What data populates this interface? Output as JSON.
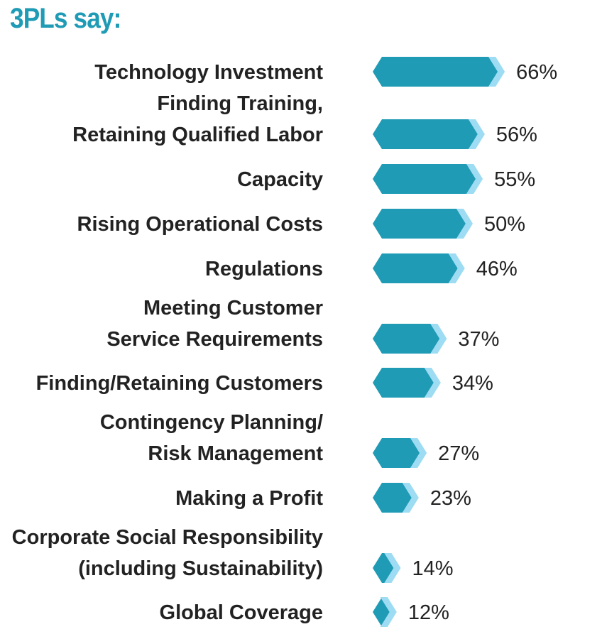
{
  "chart_data": {
    "type": "bar",
    "orientation": "horizontal",
    "title": "3PLs say:",
    "xlabel": "",
    "ylabel": "",
    "xlim": [
      0,
      100
    ],
    "grid": false,
    "value_suffix": "%",
    "categories": [
      [
        "Technology Investment"
      ],
      [
        "Finding Training,",
        "Retaining Qualified Labor"
      ],
      [
        "Capacity"
      ],
      [
        "Rising Operational Costs"
      ],
      [
        "Regulations"
      ],
      [
        "Meeting Customer",
        "Service Requirements"
      ],
      [
        "Finding/Retaining Customers"
      ],
      [
        "Contingency Planning/",
        "Risk Management"
      ],
      [
        "Making a Profit"
      ],
      [
        "Corporate Social Responsibility",
        "(including Sustainability)"
      ],
      [
        "Global Coverage"
      ]
    ],
    "values": [
      66,
      56,
      55,
      50,
      46,
      37,
      34,
      27,
      23,
      14,
      12
    ],
    "bar_color": "#1f9bb5",
    "tip_color": "#9ddcf2",
    "title_color": "#1f9bb5",
    "text_color": "#222222"
  }
}
